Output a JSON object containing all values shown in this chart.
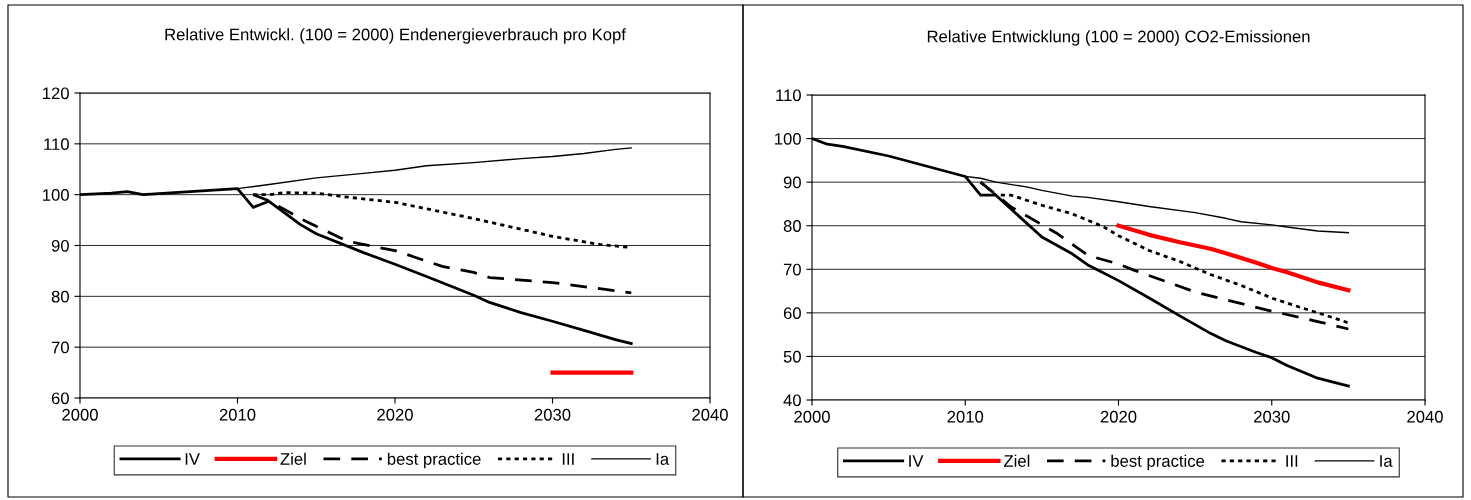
{
  "chart_data": [
    {
      "type": "line",
      "title": "Relative Entwickl. (100 = 2000) Endenergieverbrauch pro Kopf",
      "xlim": [
        2000,
        2040
      ],
      "xticks": [
        2000,
        2010,
        2020,
        2030,
        2040
      ],
      "ylim": [
        60,
        120
      ],
      "yticks": [
        60,
        70,
        80,
        90,
        100,
        110,
        120
      ],
      "grid": "y",
      "legend": "bottom",
      "series": [
        {
          "name": "IV",
          "color": "#000000",
          "line_style": "solid",
          "x": [
            2000,
            2002,
            2003,
            2004,
            2006,
            2008,
            2010,
            2011,
            2012,
            2014,
            2015,
            2018,
            2020,
            2022,
            2025,
            2026,
            2028,
            2030,
            2032,
            2034,
            2035
          ],
          "values": [
            100,
            100.3,
            100.6,
            100,
            100.4,
            100.8,
            101.2,
            97.5,
            98.7,
            94.1,
            92.3,
            88.6,
            86.3,
            83.9,
            80.2,
            78.8,
            76.8,
            75.1,
            73.3,
            71.5,
            70.7
          ]
        },
        {
          "name": "Ziel",
          "color": "#ff0000",
          "line_style": "solid",
          "x": [
            2030,
            2035
          ],
          "values": [
            65,
            65
          ]
        },
        {
          "name": "best practice",
          "color": "#000000",
          "line_style": "dashed",
          "x": [
            2011,
            2012,
            2014,
            2017,
            2020,
            2023,
            2025,
            2026,
            2030,
            2033,
            2035
          ],
          "values": [
            100,
            98.8,
            95.3,
            90.8,
            89,
            85.9,
            84.7,
            83.7,
            82.7,
            81.5,
            80.7
          ]
        },
        {
          "name": "III",
          "color": "#000000",
          "line_style": "dotted",
          "x": [
            2011,
            2012,
            2013,
            2015,
            2017,
            2020,
            2025,
            2030,
            2033,
            2035
          ],
          "values": [
            100,
            100,
            100.4,
            100.3,
            99.5,
            98.5,
            95.3,
            91.8,
            90.2,
            89.6
          ]
        },
        {
          "name": "Ia",
          "color": "#000000",
          "line_style": "solid",
          "x": [
            2010,
            2012,
            2015,
            2018,
            2020,
            2022,
            2025,
            2028,
            2030,
            2032,
            2034,
            2035
          ],
          "values": [
            101.2,
            102,
            103.3,
            104.2,
            104.8,
            105.7,
            106.3,
            107.1,
            107.5,
            108.1,
            108.9,
            109.2
          ]
        }
      ]
    },
    {
      "type": "line",
      "title": "Relative Entwicklung (100 = 2000) CO2-Emissionen",
      "xlim": [
        2000,
        2040
      ],
      "xticks": [
        2000,
        2010,
        2020,
        2030,
        2040
      ],
      "ylim": [
        40,
        110
      ],
      "yticks": [
        40,
        50,
        60,
        70,
        80,
        90,
        100,
        110
      ],
      "grid": "y",
      "legend": "bottom",
      "series": [
        {
          "name": "IV",
          "color": "#000000",
          "line_style": "solid",
          "x": [
            2000,
            2001,
            2002,
            2005,
            2010,
            2011,
            2012,
            2014,
            2015,
            2017,
            2018,
            2019,
            2020,
            2022,
            2024,
            2026,
            2027,
            2029,
            2030,
            2031,
            2033,
            2035
          ],
          "values": [
            100,
            98.7,
            98.2,
            96,
            91.3,
            87,
            87,
            80.6,
            77.4,
            73.5,
            71,
            69.2,
            67.4,
            63.4,
            59.3,
            55.3,
            53.6,
            50.9,
            49.7,
            47.9,
            45,
            43.2
          ]
        },
        {
          "name": "Ziel",
          "color": "#ff0000",
          "line_style": "solid",
          "x": [
            2020,
            2022,
            2024,
            2026,
            2027,
            2029,
            2030,
            2031,
            2033,
            2035
          ],
          "values": [
            80,
            77.9,
            76.2,
            74.7,
            73.7,
            71.5,
            70.3,
            69.3,
            67,
            65.2
          ]
        },
        {
          "name": "best practice",
          "color": "#000000",
          "line_style": "dashed",
          "x": [
            2011,
            2013,
            2016,
            2018,
            2020,
            2021,
            2023,
            2025,
            2027,
            2030,
            2033,
            2035
          ],
          "values": [
            90,
            84.3,
            78.2,
            73.2,
            71.2,
            69.8,
            67.3,
            64.8,
            63,
            60.4,
            58,
            56.3
          ]
        },
        {
          "name": "III",
          "color": "#000000",
          "line_style": "dotted",
          "x": [
            2011,
            2012,
            2013,
            2015,
            2017,
            2019,
            2020,
            2022,
            2024,
            2026,
            2028,
            2030,
            2032,
            2034,
            2035
          ],
          "values": [
            90,
            87,
            87,
            84.7,
            82.7,
            79.8,
            77.7,
            74.3,
            71.8,
            68.8,
            66.3,
            63.4,
            61.1,
            58.9,
            57.7
          ]
        },
        {
          "name": "Ia",
          "color": "#000000",
          "line_style": "solid",
          "x": [
            2010,
            2011,
            2012,
            2014,
            2015,
            2017,
            2018,
            2020,
            2022,
            2025,
            2027,
            2028,
            2030,
            2031,
            2033,
            2035
          ],
          "values": [
            91.3,
            90.9,
            90,
            88.9,
            88.1,
            86.8,
            86.5,
            85.5,
            84.4,
            83,
            81.7,
            80.9,
            80.2,
            79.7,
            78.8,
            78.4
          ]
        }
      ]
    }
  ]
}
